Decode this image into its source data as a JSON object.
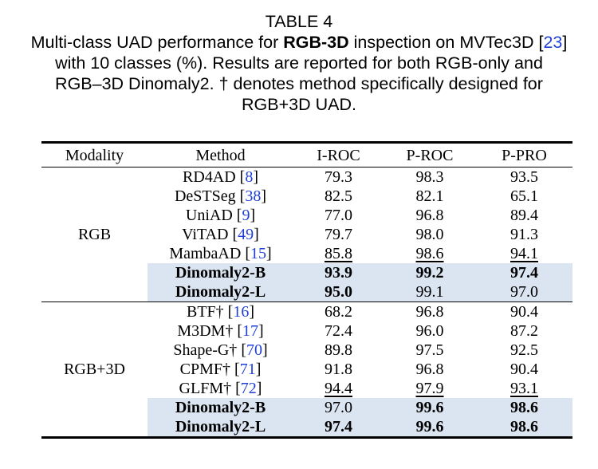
{
  "caption": {
    "line1": "TABLE 4",
    "line2_pre": "Multi-class UAD performance for ",
    "line2_bold": "RGB-3D",
    "line2_post": " inspection on MVTec3D [",
    "line2_ref": "23",
    "line2_end": "]",
    "line3": "with 10 classes (%). Results are reported for both RGB-only and",
    "line4": "RGB–3D Dinomaly2. † denotes method specifically designed for",
    "line5": "RGB+3D UAD."
  },
  "table": {
    "headers": [
      "Modality",
      "Method",
      "I-ROC",
      "P-ROC",
      "P-PRO"
    ],
    "groups": [
      {
        "modality": "RGB",
        "rows": [
          {
            "name": "RD4AD",
            "ref": "8",
            "vals": [
              "79.3",
              "98.3",
              "93.5"
            ]
          },
          {
            "name": "DeSTSeg",
            "ref": "38",
            "vals": [
              "82.5",
              "82.1",
              "65.1"
            ]
          },
          {
            "name": "UniAD",
            "ref": "9",
            "vals": [
              "77.0",
              "96.8",
              "89.4"
            ]
          },
          {
            "name": "ViTAD",
            "ref": "49",
            "vals": [
              "79.7",
              "98.0",
              "91.3"
            ]
          },
          {
            "name": "MambaAD",
            "ref": "15",
            "vals": [
              "85.8",
              "98.6",
              "94.1"
            ]
          },
          {
            "name": "Dinomaly2-B",
            "ref": "",
            "vals": [
              "93.9",
              "99.2",
              "97.4"
            ]
          },
          {
            "name": "Dinomaly2-L",
            "ref": "",
            "vals": [
              "95.0",
              "99.1",
              "97.0"
            ]
          }
        ]
      },
      {
        "modality": "RGB+3D",
        "rows": [
          {
            "name": "BTF†",
            "ref": "16",
            "vals": [
              "68.2",
              "96.8",
              "90.4"
            ]
          },
          {
            "name": "M3DM†",
            "ref": "17",
            "vals": [
              "72.4",
              "96.0",
              "87.2"
            ]
          },
          {
            "name": "Shape-G†",
            "ref": "70",
            "vals": [
              "89.8",
              "97.5",
              "92.5"
            ]
          },
          {
            "name": "CPMF†",
            "ref": "71",
            "vals": [
              "91.8",
              "96.8",
              "90.4"
            ]
          },
          {
            "name": "GLFM†",
            "ref": "72",
            "vals": [
              "94.4",
              "97.9",
              "93.1"
            ]
          },
          {
            "name": "Dinomaly2-B",
            "ref": "",
            "vals": [
              "97.0",
              "99.6",
              "98.6"
            ]
          },
          {
            "name": "Dinomaly2-L",
            "ref": "",
            "vals": [
              "97.4",
              "99.6",
              "98.6"
            ]
          }
        ]
      }
    ],
    "highlight_color": "#dbe5f1",
    "ref_color": "#1f3fd6"
  }
}
